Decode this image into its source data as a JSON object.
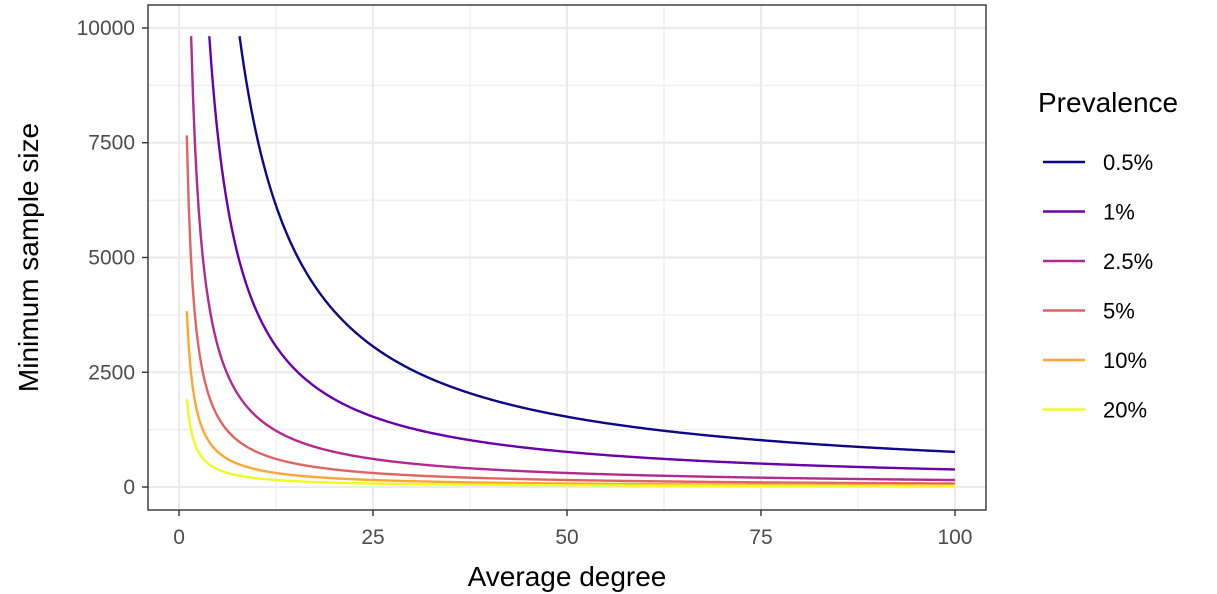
{
  "chart_data": {
    "type": "line",
    "xlabel": "Average degree",
    "ylabel": "Minimum sample size",
    "xlim": [
      -4,
      104
    ],
    "ylim": [
      -500,
      10500
    ],
    "x_ticks": [
      0,
      25,
      50,
      75,
      100
    ],
    "x_tick_labels": [
      "0",
      "25",
      "50",
      "75",
      "100"
    ],
    "y_ticks": [
      0,
      2500,
      5000,
      7500,
      10000
    ],
    "y_tick_labels": [
      "0",
      "2500",
      "5000",
      "7500",
      "10000"
    ],
    "grid": true,
    "legend": {
      "title": "Prevalence",
      "position": "right"
    },
    "x_range": [
      1,
      100
    ],
    "model": "y = k / x",
    "series": [
      {
        "name": "0.5%",
        "color": "#0d0887",
        "k": 76600,
        "x": [
          7.8,
          10,
          15,
          20,
          25,
          30,
          40,
          50,
          60,
          75,
          100
        ],
        "values": [
          9821,
          7660,
          5107,
          3830,
          3064,
          2553,
          1915,
          1532,
          1277,
          1021,
          766
        ]
      },
      {
        "name": "1%",
        "color": "#6a00a8",
        "k": 38300,
        "x": [
          3.9,
          5,
          10,
          15,
          20,
          25,
          30,
          40,
          50,
          75,
          100
        ],
        "values": [
          9821,
          7660,
          3830,
          2553,
          1915,
          1532,
          1277,
          958,
          766,
          511,
          383
        ]
      },
      {
        "name": "2.5%",
        "color": "#b12a90",
        "k": 15320,
        "x": [
          1.56,
          2,
          3,
          5,
          10,
          15,
          20,
          25,
          50,
          75,
          100
        ],
        "values": [
          9821,
          7660,
          5107,
          3064,
          1532,
          1021,
          766,
          613,
          306,
          204,
          153
        ]
      },
      {
        "name": "5%",
        "color": "#e16462",
        "k": 7660,
        "x": [
          1,
          2,
          3,
          5,
          10,
          15,
          20,
          25,
          50,
          75,
          100
        ],
        "values": [
          7660,
          3830,
          2553,
          1532,
          766,
          511,
          383,
          306,
          153,
          102,
          77
        ]
      },
      {
        "name": "10%",
        "color": "#fca636",
        "k": 3830,
        "x": [
          1,
          2,
          3,
          5,
          10,
          15,
          20,
          25,
          50,
          75,
          100
        ],
        "values": [
          3830,
          1915,
          1277,
          766,
          383,
          255,
          192,
          153,
          77,
          51,
          38
        ]
      },
      {
        "name": "20%",
        "color": "#f0f921",
        "k": 1915,
        "x": [
          1,
          2,
          3,
          5,
          10,
          15,
          20,
          25,
          50,
          75,
          100
        ],
        "values": [
          1915,
          958,
          638,
          383,
          192,
          128,
          96,
          77,
          38,
          26,
          19
        ]
      }
    ]
  }
}
